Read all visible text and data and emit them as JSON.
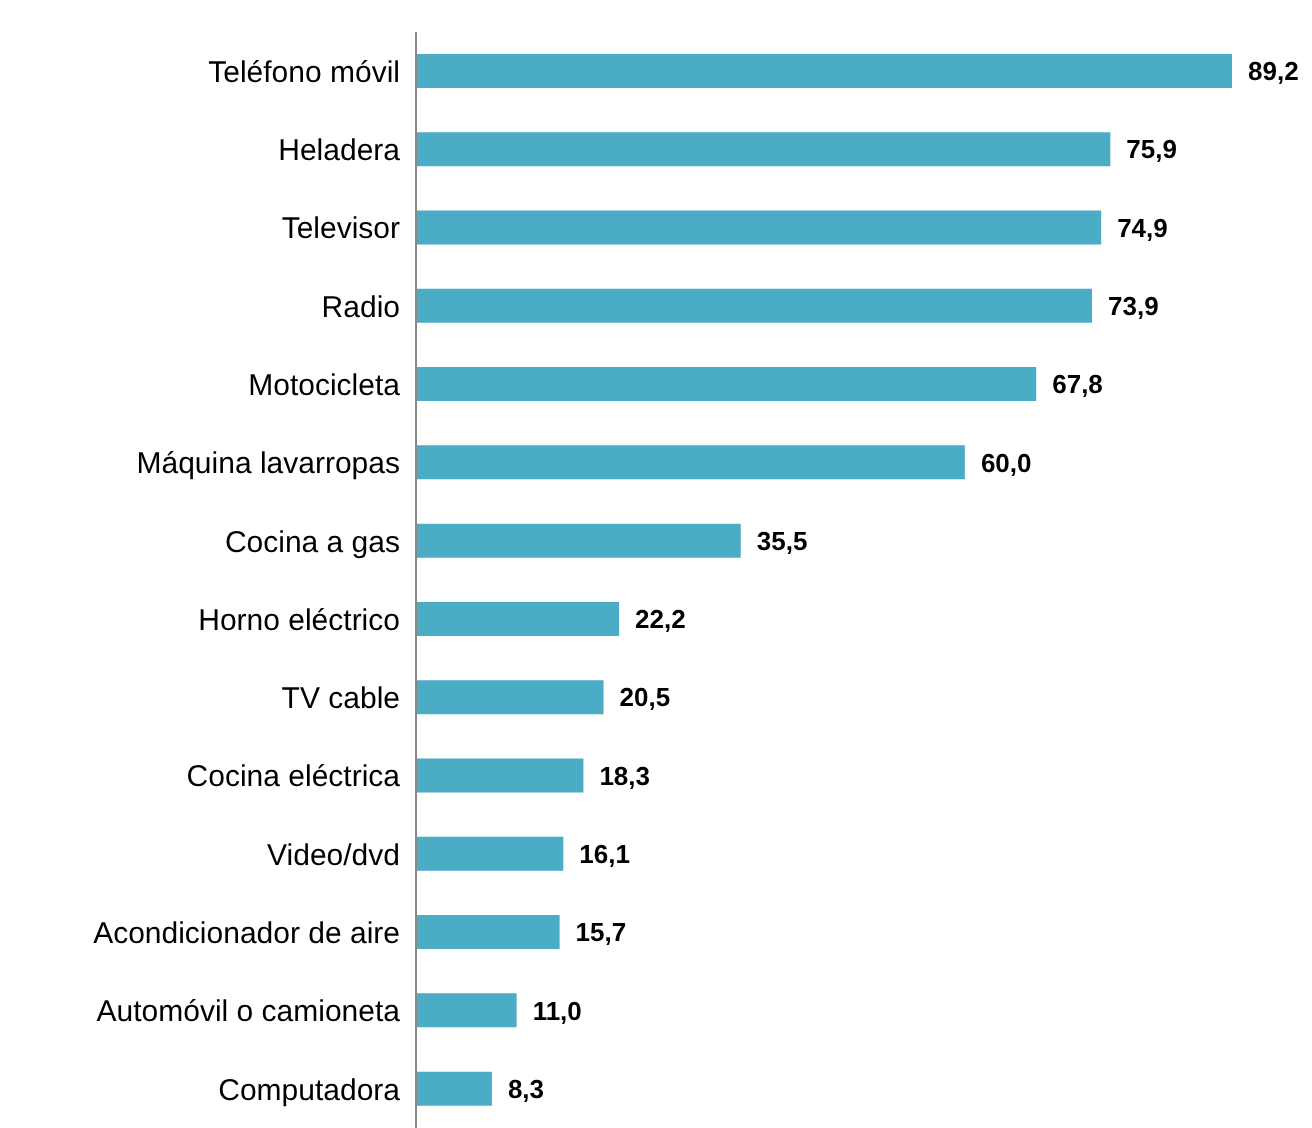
{
  "chart_data": {
    "type": "bar",
    "orientation": "horizontal",
    "categories": [
      "Teléfono móvil",
      "Heladera",
      "Televisor",
      "Radio",
      "Motocicleta",
      "Máquina lavarropas",
      "Cocina a gas",
      "Horno eléctrico",
      "TV cable",
      "Cocina eléctrica",
      "Video/dvd",
      "Acondicionador de aire",
      "Automóvil o camioneta",
      "Computadora"
    ],
    "values": [
      89.2,
      75.9,
      74.9,
      73.9,
      67.8,
      60.0,
      35.5,
      22.2,
      20.5,
      18.3,
      16.1,
      15.7,
      11.0,
      8.3
    ],
    "value_labels": [
      "89,2",
      "75,9",
      "74,9",
      "73,9",
      "67,8",
      "60,0",
      "35,5",
      "22,2",
      "20,5",
      "18,3",
      "16,1",
      "15,7",
      "11,0",
      "8,3"
    ],
    "color": "#4bacc6",
    "grid": false,
    "legend": false
  }
}
